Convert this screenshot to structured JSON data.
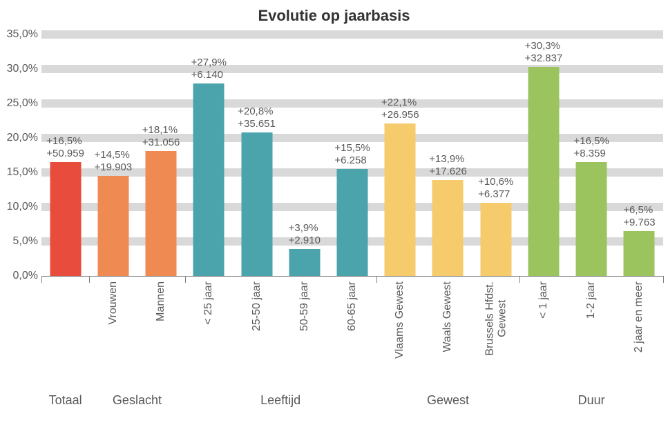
{
  "chart": {
    "type": "bar",
    "title": "Evolutie op jaarbasis",
    "title_fontsize": 22,
    "title_color": "#333333",
    "background_color": "#ffffff",
    "grid_color": "#d9d9d9",
    "axis_text_color": "#595959",
    "axis_fontsize": 16,
    "datalabel_fontsize": 15,
    "group_fontsize": 18,
    "xlabel_fontsize": 16,
    "yaxis": {
      "min": 0,
      "max": 35,
      "tick_step": 5,
      "ticks": [
        "0,0%",
        "5,0%",
        "10,0%",
        "15,0%",
        "20,0%",
        "25,0%",
        "30,0%",
        "35,0%"
      ]
    },
    "bar_width_pct": 65,
    "groups": [
      {
        "label": "Totaal",
        "start": 0,
        "span": 1
      },
      {
        "label": "Geslacht",
        "start": 1,
        "span": 2
      },
      {
        "label": "Leeftijd",
        "start": 3,
        "span": 4
      },
      {
        "label": "Gewest",
        "start": 7,
        "span": 3
      },
      {
        "label": "Duur",
        "start": 10,
        "span": 3
      }
    ],
    "colors": {
      "totaal": "#e84c3d",
      "geslacht": "#f08a53",
      "leeftijd": "#4ba3ac",
      "gewest": "#f6cb6b",
      "duur": "#9bc45f"
    },
    "bars": [
      {
        "category": "",
        "value": 16.5,
        "pct_label": "+16,5%",
        "abs_label": "+50.959",
        "color_key": "totaal"
      },
      {
        "category": "Vrouwen",
        "value": 14.5,
        "pct_label": "+14,5%",
        "abs_label": "+19.903",
        "color_key": "geslacht"
      },
      {
        "category": "Mannen",
        "value": 18.1,
        "pct_label": "+18,1%",
        "abs_label": "+31.056",
        "color_key": "geslacht"
      },
      {
        "category": "< 25 jaar",
        "value": 27.9,
        "pct_label": "+27,9%",
        "abs_label": "+6.140",
        "color_key": "leeftijd"
      },
      {
        "category": "25-50 jaar",
        "value": 20.8,
        "pct_label": "+20,8%",
        "abs_label": "+35.651",
        "color_key": "leeftijd"
      },
      {
        "category": "50-59 jaar",
        "value": 3.9,
        "pct_label": "+3,9%",
        "abs_label": "+2.910",
        "color_key": "leeftijd"
      },
      {
        "category": "60-65 jaar",
        "value": 15.5,
        "pct_label": "+15,5%",
        "abs_label": "+6.258",
        "color_key": "leeftijd"
      },
      {
        "category": "Vlaams Gewest",
        "value": 22.1,
        "pct_label": "+22,1%",
        "abs_label": "+26.956",
        "color_key": "gewest"
      },
      {
        "category": "Waals Gewest",
        "value": 13.9,
        "pct_label": "+13,9%",
        "abs_label": "+17.626",
        "color_key": "gewest"
      },
      {
        "category": "Brussels Hfdst.\nGewest",
        "value": 10.6,
        "pct_label": "+10,6%",
        "abs_label": "+6.377",
        "color_key": "gewest"
      },
      {
        "category": "< 1 jaar",
        "value": 30.3,
        "pct_label": "+30,3%",
        "abs_label": "+32.837",
        "color_key": "duur"
      },
      {
        "category": "1-2 jaar",
        "value": 16.5,
        "pct_label": "+16,5%",
        "abs_label": "+8.359",
        "color_key": "duur"
      },
      {
        "category": "2 jaar en meer",
        "value": 6.5,
        "pct_label": "+6,5%",
        "abs_label": "+9.763",
        "color_key": "duur"
      }
    ]
  }
}
